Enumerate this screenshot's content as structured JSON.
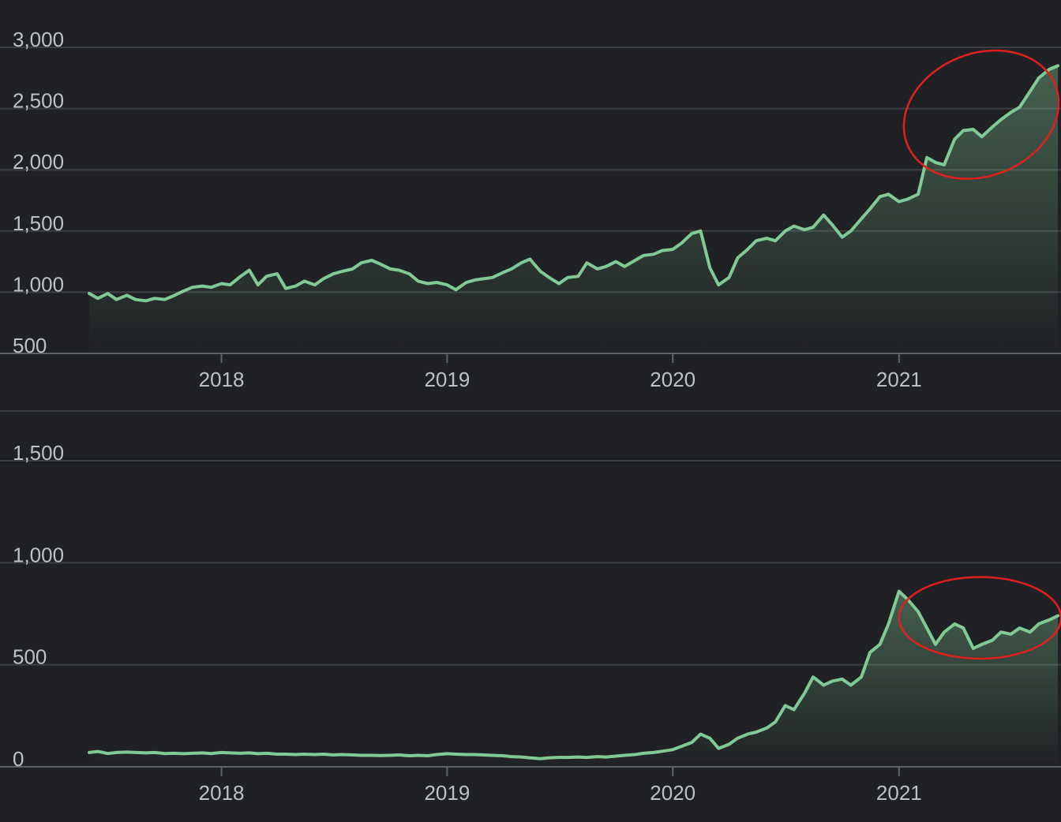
{
  "chart_data": [
    {
      "type": "area",
      "x_type": "date",
      "ylim": [
        500,
        3000
      ],
      "yticks": [
        500,
        1000,
        1500,
        2000,
        2500,
        3000
      ],
      "ytick_labels": [
        "500",
        "1,000",
        "1,500",
        "2,000",
        "2,500",
        "3,000"
      ],
      "xticks": [
        "2018-01-01",
        "2019-01-01",
        "2020-01-01",
        "2021-01-01"
      ],
      "xtick_labels": [
        "2018",
        "2019",
        "2020",
        "2021"
      ],
      "xlim": [
        "2017-06-01",
        "2021-09-20"
      ],
      "line_color": "#81c995",
      "annotation_color": "#e0201c",
      "annotation": {
        "type": "ellipse",
        "x_range": [
          "2021-01-05",
          "2021-09-20"
        ],
        "y_range": [
          1950,
          2950
        ]
      },
      "series": [
        {
          "x": [
            "2017-06-01",
            "2017-06-15",
            "2017-07-01",
            "2017-07-15",
            "2017-08-01",
            "2017-08-15",
            "2017-09-01",
            "2017-09-15",
            "2017-10-01",
            "2017-10-15",
            "2017-11-01",
            "2017-11-15",
            "2017-12-01",
            "2017-12-15",
            "2018-01-01",
            "2018-01-15",
            "2018-02-01",
            "2018-02-15",
            "2018-03-01",
            "2018-03-15",
            "2018-04-01",
            "2018-04-15",
            "2018-05-01",
            "2018-05-15",
            "2018-06-01",
            "2018-06-15",
            "2018-07-01",
            "2018-07-15",
            "2018-08-01",
            "2018-08-15",
            "2018-09-01",
            "2018-09-15",
            "2018-10-01",
            "2018-10-15",
            "2018-11-01",
            "2018-11-15",
            "2018-12-01",
            "2018-12-15",
            "2019-01-01",
            "2019-01-15",
            "2019-02-01",
            "2019-02-15",
            "2019-03-01",
            "2019-03-15",
            "2019-04-01",
            "2019-04-15",
            "2019-05-01",
            "2019-05-15",
            "2019-06-01",
            "2019-06-15",
            "2019-07-01",
            "2019-07-15",
            "2019-08-01",
            "2019-08-15",
            "2019-09-01",
            "2019-09-15",
            "2019-10-01",
            "2019-10-15",
            "2019-11-01",
            "2019-11-15",
            "2019-12-01",
            "2019-12-15",
            "2020-01-01",
            "2020-01-15",
            "2020-02-01",
            "2020-02-15",
            "2020-03-01",
            "2020-03-15",
            "2020-04-01",
            "2020-04-15",
            "2020-05-01",
            "2020-05-15",
            "2020-06-01",
            "2020-06-15",
            "2020-07-01",
            "2020-07-15",
            "2020-08-01",
            "2020-08-15",
            "2020-09-01",
            "2020-09-15",
            "2020-10-01",
            "2020-10-15",
            "2020-11-01",
            "2020-11-15",
            "2020-12-01",
            "2020-12-15",
            "2021-01-01",
            "2021-01-15",
            "2021-02-01",
            "2021-02-15",
            "2021-03-01",
            "2021-03-15",
            "2021-04-01",
            "2021-04-15",
            "2021-05-01",
            "2021-05-15",
            "2021-06-01",
            "2021-06-15",
            "2021-07-01",
            "2021-07-15",
            "2021-08-01",
            "2021-08-15",
            "2021-09-01",
            "2021-09-15"
          ],
          "y": [
            990,
            950,
            990,
            940,
            975,
            940,
            930,
            950,
            940,
            970,
            1010,
            1040,
            1050,
            1040,
            1070,
            1060,
            1130,
            1180,
            1060,
            1130,
            1150,
            1030,
            1050,
            1090,
            1060,
            1110,
            1150,
            1170,
            1190,
            1240,
            1260,
            1230,
            1190,
            1180,
            1150,
            1090,
            1070,
            1080,
            1060,
            1020,
            1080,
            1100,
            1110,
            1120,
            1160,
            1190,
            1240,
            1270,
            1170,
            1120,
            1070,
            1120,
            1130,
            1240,
            1190,
            1210,
            1250,
            1210,
            1260,
            1300,
            1310,
            1340,
            1350,
            1400,
            1480,
            1500,
            1200,
            1060,
            1120,
            1280,
            1350,
            1420,
            1440,
            1420,
            1500,
            1540,
            1510,
            1530,
            1630,
            1550,
            1450,
            1500,
            1600,
            1680,
            1780,
            1800,
            1740,
            1760,
            1800,
            2100,
            2060,
            2040,
            2250,
            2320,
            2330,
            2270,
            2350,
            2410,
            2470,
            2510,
            2640,
            2750,
            2820,
            2850
          ]
        }
      ]
    },
    {
      "type": "area",
      "x_type": "date",
      "ylim": [
        0,
        1500
      ],
      "yticks": [
        0,
        500,
        1000,
        1500
      ],
      "ytick_labels": [
        "0",
        "500",
        "1,000",
        "1,500"
      ],
      "xticks": [
        "2018-01-01",
        "2019-01-01",
        "2020-01-01",
        "2021-01-01"
      ],
      "xtick_labels": [
        "2018",
        "2019",
        "2020",
        "2021"
      ],
      "xlim": [
        "2017-06-01",
        "2021-09-20"
      ],
      "line_color": "#81c995",
      "annotation_color": "#e0201c",
      "annotation": {
        "type": "ellipse",
        "x_range": [
          "2021-01-01",
          "2021-09-20"
        ],
        "y_range": [
          530,
          930
        ]
      },
      "series": [
        {
          "x": [
            "2017-06-01",
            "2017-06-15",
            "2017-07-01",
            "2017-07-15",
            "2017-08-01",
            "2017-08-15",
            "2017-09-01",
            "2017-09-15",
            "2017-10-01",
            "2017-10-15",
            "2017-11-01",
            "2017-11-15",
            "2017-12-01",
            "2017-12-15",
            "2018-01-01",
            "2018-01-15",
            "2018-02-01",
            "2018-02-15",
            "2018-03-01",
            "2018-03-15",
            "2018-04-01",
            "2018-04-15",
            "2018-05-01",
            "2018-05-15",
            "2018-06-01",
            "2018-06-15",
            "2018-07-01",
            "2018-07-15",
            "2018-08-01",
            "2018-08-15",
            "2018-09-01",
            "2018-09-15",
            "2018-10-01",
            "2018-10-15",
            "2018-11-01",
            "2018-11-15",
            "2018-12-01",
            "2018-12-15",
            "2019-01-01",
            "2019-01-15",
            "2019-02-01",
            "2019-02-15",
            "2019-03-01",
            "2019-03-15",
            "2019-04-01",
            "2019-04-15",
            "2019-05-01",
            "2019-05-15",
            "2019-06-01",
            "2019-06-15",
            "2019-07-01",
            "2019-07-15",
            "2019-08-01",
            "2019-08-15",
            "2019-09-01",
            "2019-09-15",
            "2019-10-01",
            "2019-10-15",
            "2019-11-01",
            "2019-11-15",
            "2019-12-01",
            "2019-12-15",
            "2020-01-01",
            "2020-01-15",
            "2020-02-01",
            "2020-02-15",
            "2020-03-01",
            "2020-03-15",
            "2020-04-01",
            "2020-04-15",
            "2020-05-01",
            "2020-05-15",
            "2020-06-01",
            "2020-06-15",
            "2020-07-01",
            "2020-07-15",
            "2020-08-01",
            "2020-08-15",
            "2020-09-01",
            "2020-09-15",
            "2020-10-01",
            "2020-10-15",
            "2020-11-01",
            "2020-11-15",
            "2020-12-01",
            "2020-12-15",
            "2021-01-01",
            "2021-01-15",
            "2021-02-01",
            "2021-02-15",
            "2021-03-01",
            "2021-03-15",
            "2021-04-01",
            "2021-04-15",
            "2021-05-01",
            "2021-05-15",
            "2021-06-01",
            "2021-06-15",
            "2021-07-01",
            "2021-07-15",
            "2021-08-01",
            "2021-08-15",
            "2021-09-01",
            "2021-09-15"
          ],
          "y": [
            70,
            75,
            65,
            70,
            72,
            70,
            68,
            70,
            65,
            66,
            64,
            66,
            68,
            65,
            70,
            68,
            66,
            68,
            64,
            66,
            62,
            62,
            60,
            62,
            60,
            62,
            58,
            60,
            58,
            56,
            56,
            55,
            56,
            58,
            54,
            56,
            54,
            60,
            64,
            62,
            60,
            60,
            58,
            56,
            54,
            50,
            48,
            44,
            40,
            44,
            46,
            46,
            48,
            46,
            50,
            48,
            52,
            56,
            60,
            66,
            70,
            76,
            84,
            100,
            120,
            160,
            140,
            90,
            110,
            140,
            160,
            170,
            190,
            220,
            300,
            280,
            360,
            440,
            400,
            420,
            430,
            400,
            440,
            560,
            600,
            700,
            860,
            820,
            760,
            680,
            600,
            660,
            700,
            680,
            580,
            600,
            620,
            660,
            650,
            680,
            660,
            700,
            720,
            740
          ]
        }
      ]
    }
  ]
}
